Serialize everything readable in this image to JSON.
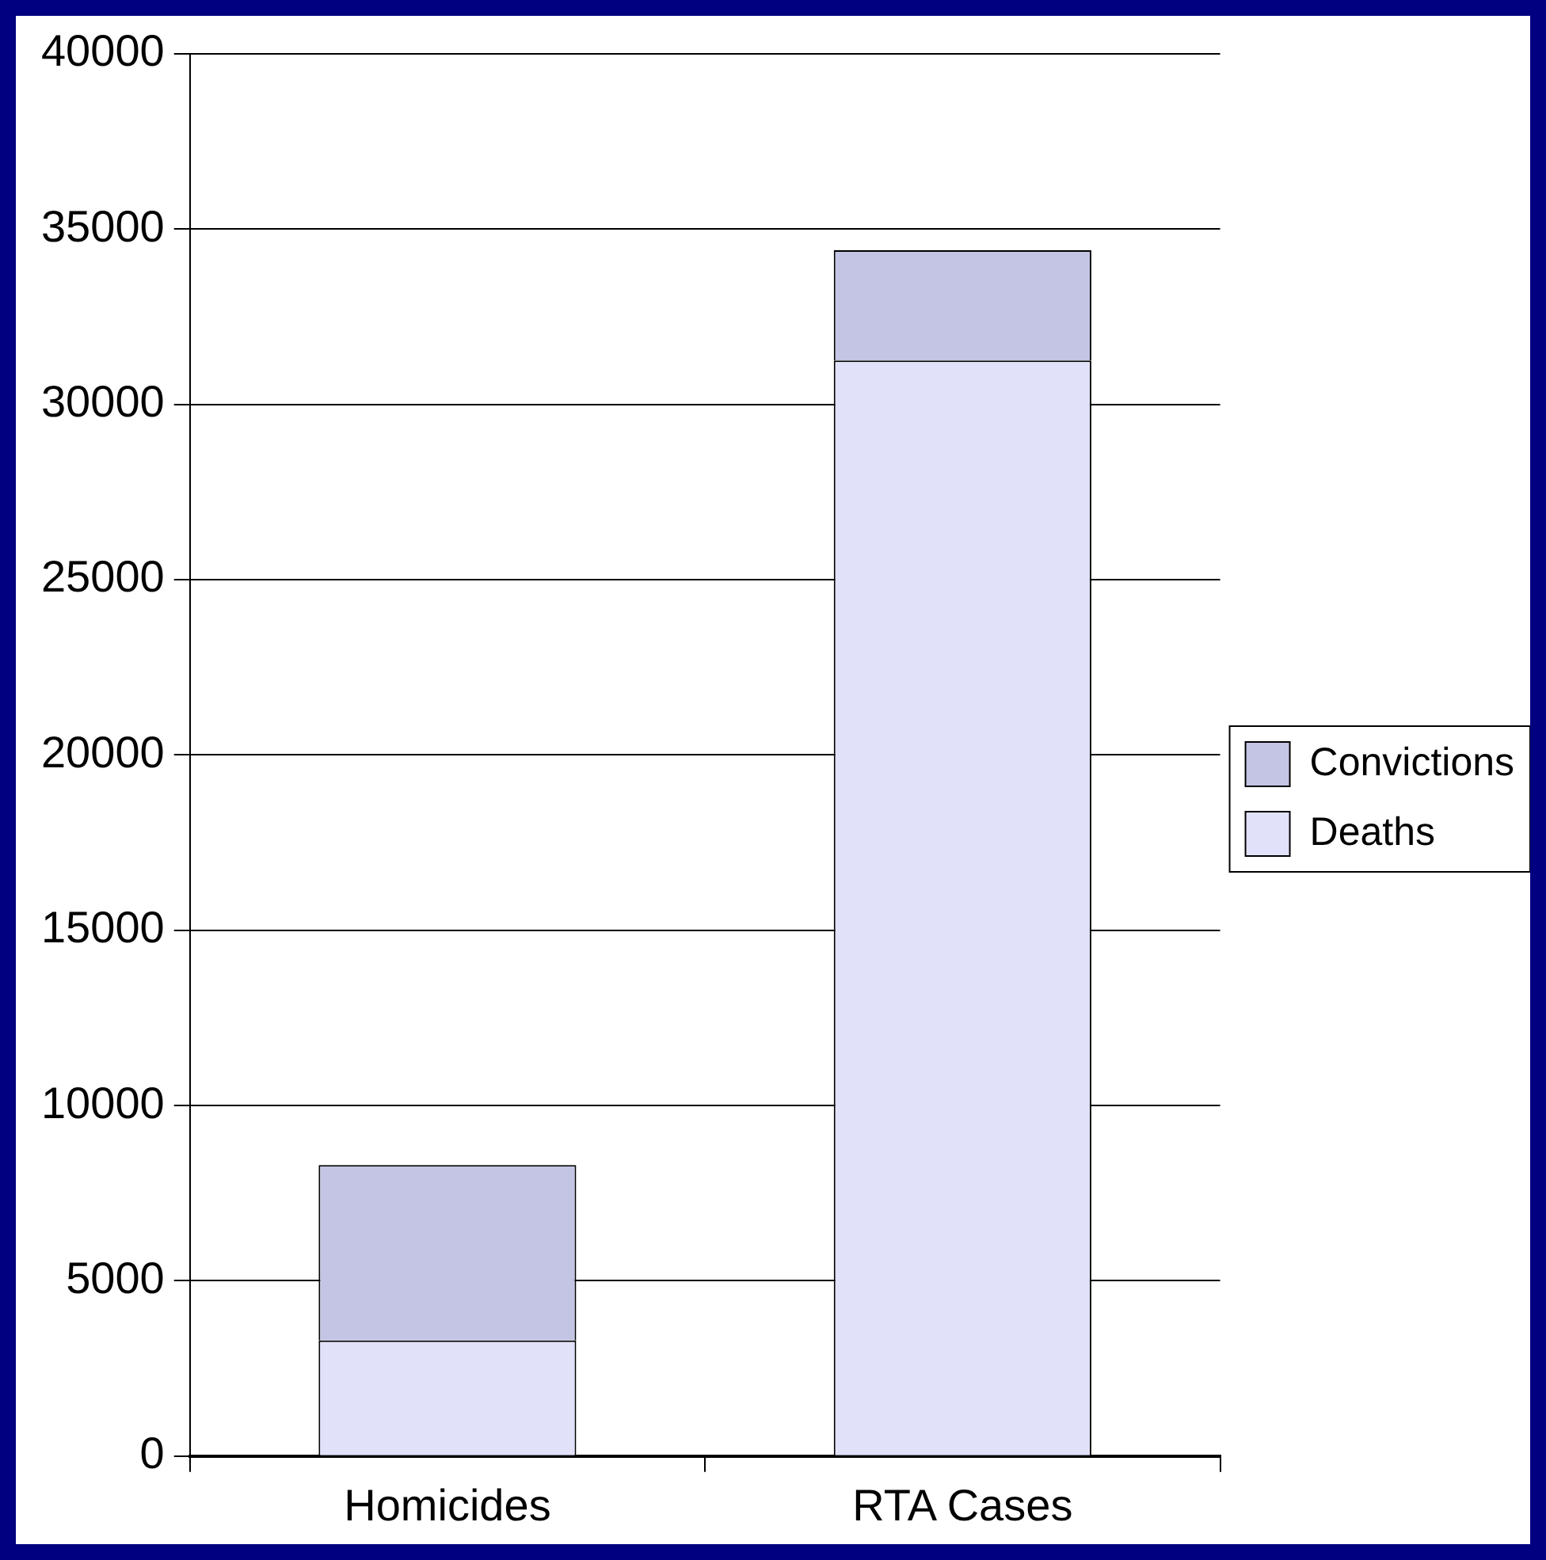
{
  "chart_data": {
    "type": "bar",
    "categories": [
      "Homicides",
      "RTA Cases"
    ],
    "stacked": true,
    "series": [
      {
        "name": "Deaths",
        "color": "#e1e1fa",
        "values": [
          3300,
          31250
        ]
      },
      {
        "name": "Convictions",
        "color": "#c4c4e4",
        "values": [
          5000,
          3150
        ]
      }
    ],
    "ylim": [
      0,
      40000
    ],
    "yticks": [
      0,
      5000,
      10000,
      15000,
      20000,
      25000,
      30000,
      35000,
      40000
    ],
    "grid": "y",
    "legend": "right"
  }
}
